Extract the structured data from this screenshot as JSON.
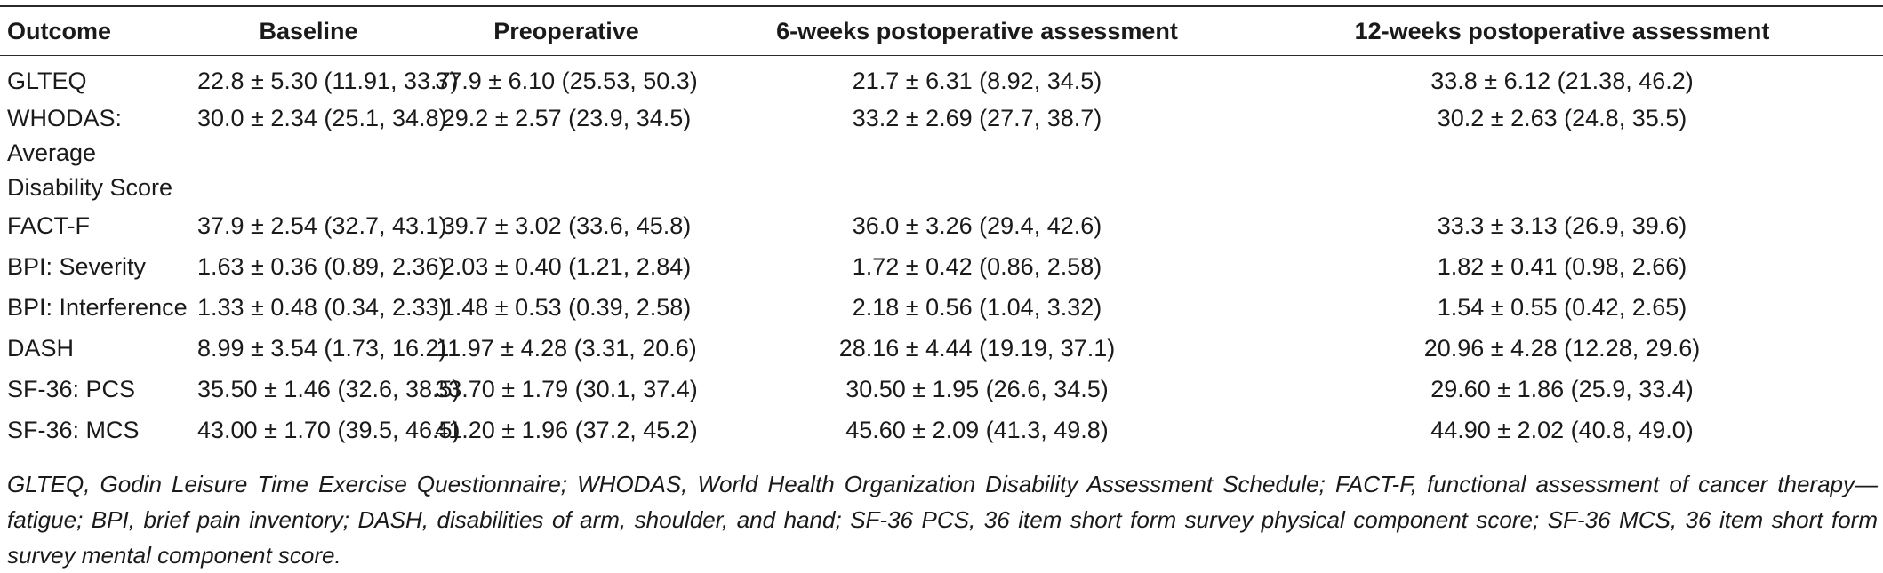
{
  "table": {
    "headers": [
      "Outcome",
      "Baseline",
      "Preoperative",
      "6-weeks postoperative assessment",
      "12-weeks postoperative assessment"
    ],
    "rows": [
      {
        "outcome": "GLTEQ",
        "baseline": "22.8 ± 5.30 (11.91, 33.7)",
        "preoperative": "37.9 ± 6.10 (25.53, 50.3)",
        "week6": "21.7 ± 6.31 (8.92, 34.5)",
        "week12": "33.8 ± 6.12 (21.38, 46.2)"
      },
      {
        "outcome": "WHODAS: Average Disability Score",
        "baseline": "30.0 ± 2.34 (25.1, 34.8)",
        "preoperative": "29.2 ± 2.57 (23.9, 34.5)",
        "week6": "33.2 ± 2.69 (27.7, 38.7)",
        "week12": "30.2 ± 2.63 (24.8, 35.5)"
      },
      {
        "outcome": "FACT-F",
        "baseline": "37.9 ± 2.54 (32.7, 43.1)",
        "preoperative": "39.7 ± 3.02 (33.6, 45.8)",
        "week6": "36.0 ± 3.26 (29.4, 42.6)",
        "week12": "33.3 ± 3.13 (26.9, 39.6)"
      },
      {
        "outcome": "BPI: Severity",
        "baseline": "1.63 ± 0.36 (0.89, 2.36)",
        "preoperative": "2.03 ± 0.40 (1.21, 2.84)",
        "week6": "1.72 ± 0.42 (0.86, 2.58)",
        "week12": "1.82 ± 0.41 (0.98, 2.66)"
      },
      {
        "outcome": "BPI: Interference",
        "baseline": "1.33 ± 0.48 (0.34, 2.33)",
        "preoperative": "1.48 ± 0.53 (0.39, 2.58)",
        "week6": "2.18 ± 0.56 (1.04, 3.32)",
        "week12": "1.54 ± 0.55 (0.42, 2.65)"
      },
      {
        "outcome": "DASH",
        "baseline": "8.99 ± 3.54 (1.73, 16.2)",
        "preoperative": "11.97 ± 4.28 (3.31, 20.6)",
        "week6": "28.16 ± 4.44 (19.19, 37.1)",
        "week12": "20.96 ± 4.28 (12.28, 29.6)"
      },
      {
        "outcome": "SF-36: PCS",
        "baseline": "35.50 ± 1.46 (32.6, 38.5)",
        "preoperative": "33.70 ± 1.79 (30.1, 37.4)",
        "week6": "30.50 ± 1.95 (26.6, 34.5)",
        "week12": "29.60 ± 1.86 (25.9, 33.4)"
      },
      {
        "outcome": "SF-36: MCS",
        "baseline": "43.00 ± 1.70 (39.5, 46.5)",
        "preoperative": "41.20 ± 1.96 (37.2, 45.2)",
        "week6": "45.60 ± 2.09 (41.3, 49.8)",
        "week12": "44.90 ± 2.02 (40.8, 49.0)"
      }
    ]
  },
  "footnote": "GLTEQ, Godin Leisure Time Exercise Questionnaire; WHODAS, World Health Organization Disability Assessment Schedule; FACT-F, functional assessment of cancer therapy—fatigue; BPI, brief pain inventory; DASH, disabilities of arm, shoulder, and hand; SF-36 PCS, 36 item short form survey physical component score; SF-36 MCS, 36 item short form survey mental component score."
}
